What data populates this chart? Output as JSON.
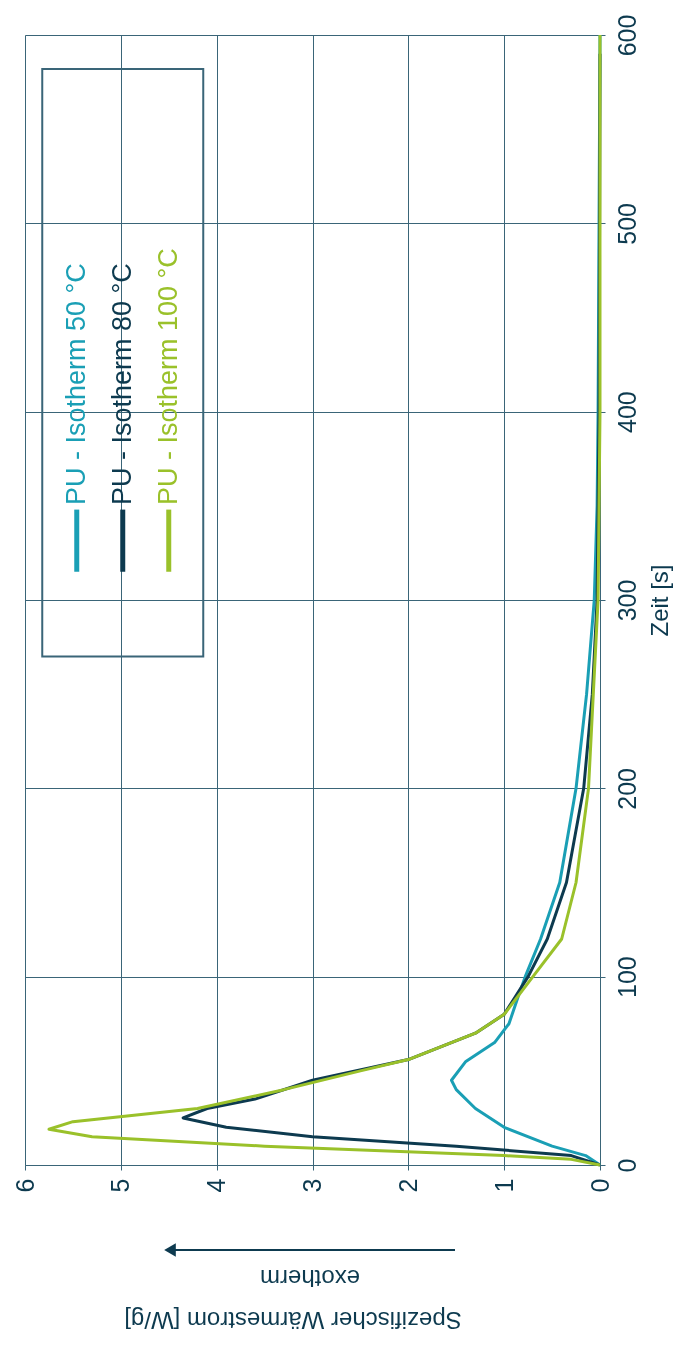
{
  "chart_data": {
    "type": "line",
    "xlabel": "Spezifischer Wärmestrom  [W/g]",
    "ylabel": "Zeit  [s]",
    "annotations": [
      "exotherm"
    ],
    "xlim": [
      6,
      0
    ],
    "xticks": [
      0,
      1,
      2,
      3,
      4,
      5,
      6
    ],
    "ylim": [
      0,
      600
    ],
    "yticks": [
      0,
      100,
      200,
      300,
      400,
      500,
      600
    ],
    "grid": true,
    "legend": "top left",
    "line_style": "solid",
    "series": [
      {
        "name": "PU - Isotherm 50 °C",
        "color": "#1a9fb5",
        "values": [
          0,
          5,
          10,
          20,
          30,
          40,
          45,
          55,
          65,
          75,
          90,
          100,
          120,
          150,
          200,
          250,
          300,
          350,
          400,
          500,
          600
        ],
        "x": [
          0,
          0.15,
          0.5,
          1.0,
          1.3,
          1.5,
          1.55,
          1.4,
          1.1,
          0.95,
          0.85,
          0.78,
          0.62,
          0.42,
          0.25,
          0.14,
          0.06,
          0.03,
          0.02,
          0.01,
          0
        ]
      },
      {
        "name": "PU - Isotherm 80 °C",
        "color": "#0d3a4f",
        "values": [
          0,
          5,
          10,
          15,
          20,
          25,
          30,
          35,
          45,
          56,
          70,
          80,
          100,
          120,
          150,
          200,
          250,
          300,
          400,
          590
        ],
        "x": [
          0,
          0.3,
          1.5,
          3.0,
          3.9,
          4.35,
          4.1,
          3.6,
          3.0,
          2.0,
          1.3,
          1.0,
          0.75,
          0.55,
          0.35,
          0.17,
          0.08,
          0.03,
          0.01,
          0
        ]
      },
      {
        "name": "PU - Isotherm 100 °C",
        "color": "#9ac12a",
        "values": [
          0,
          3,
          5,
          10,
          15,
          19,
          23,
          30,
          40,
          50,
          56,
          70,
          80,
          100,
          120,
          150,
          200,
          300,
          400,
          600
        ],
        "x": [
          0,
          0.3,
          1.0,
          3.5,
          5.3,
          5.75,
          5.5,
          4.2,
          3.3,
          2.5,
          2.0,
          1.3,
          1.0,
          0.7,
          0.4,
          0.25,
          0.12,
          0.02,
          0,
          0
        ]
      }
    ]
  }
}
